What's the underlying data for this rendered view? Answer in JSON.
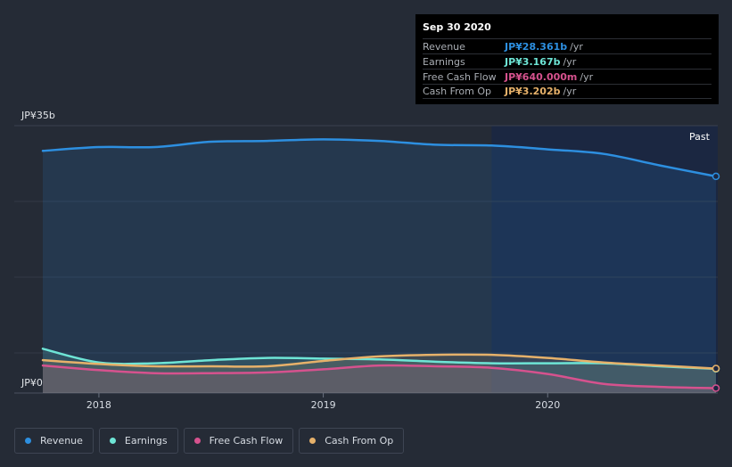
{
  "tooltip": {
    "date": "Sep 30 2020",
    "rows": [
      {
        "label": "Revenue",
        "value": "JP¥28.361b",
        "unit": "/yr",
        "color": "#2d8fe0"
      },
      {
        "label": "Earnings",
        "value": "JP¥3.167b",
        "unit": "/yr",
        "color": "#6ee5d6"
      },
      {
        "label": "Free Cash Flow",
        "value": "JP¥640.000m",
        "unit": "/yr",
        "color": "#d6528e"
      },
      {
        "label": "Cash From Op",
        "value": "JP¥3.202b",
        "unit": "/yr",
        "color": "#e6b16a"
      }
    ]
  },
  "past_label": "Past",
  "chart_data": {
    "type": "area",
    "y_top_label": "JP¥35b",
    "y_bottom_label": "JP¥0",
    "ylim": [
      0,
      35
    ],
    "xlim": [
      2017.75,
      2020.75
    ],
    "x_ticks": [
      {
        "value": 2018,
        "label": "2018"
      },
      {
        "value": 2019,
        "label": "2019"
      },
      {
        "value": 2020,
        "label": "2020"
      }
    ],
    "highlight_start": 2019.75,
    "series": [
      {
        "name": "Revenue",
        "color": "#2d8fe0",
        "fill": true,
        "x": [
          2017.75,
          2018.0,
          2018.25,
          2018.5,
          2018.75,
          2019.0,
          2019.25,
          2019.5,
          2019.75,
          2020.0,
          2020.25,
          2020.5,
          2020.75
        ],
        "values": [
          31.7,
          32.2,
          32.2,
          32.9,
          33.0,
          33.2,
          33.0,
          32.5,
          32.4,
          31.9,
          31.3,
          29.8,
          28.361
        ]
      },
      {
        "name": "Earnings",
        "color": "#6ee5d6",
        "fill": true,
        "x": [
          2017.75,
          2018.0,
          2018.25,
          2018.5,
          2018.75,
          2019.0,
          2019.25,
          2019.5,
          2019.75,
          2020.0,
          2020.25,
          2020.5,
          2020.75
        ],
        "values": [
          5.8,
          4.0,
          3.9,
          4.3,
          4.6,
          4.5,
          4.4,
          4.1,
          3.9,
          3.9,
          3.9,
          3.5,
          3.167
        ]
      },
      {
        "name": "Free Cash Flow",
        "color": "#d6528e",
        "fill": true,
        "x": [
          2017.75,
          2018.0,
          2018.25,
          2018.5,
          2018.75,
          2019.0,
          2019.25,
          2019.5,
          2019.75,
          2020.0,
          2020.25,
          2020.5,
          2020.75
        ],
        "values": [
          3.6,
          3.0,
          2.6,
          2.6,
          2.7,
          3.1,
          3.6,
          3.5,
          3.3,
          2.5,
          1.2,
          0.8,
          0.64
        ]
      },
      {
        "name": "Cash From Op",
        "color": "#e6b16a",
        "fill": true,
        "x": [
          2017.75,
          2018.0,
          2018.25,
          2018.5,
          2018.75,
          2019.0,
          2019.25,
          2019.5,
          2019.75,
          2020.0,
          2020.25,
          2020.5,
          2020.75
        ],
        "values": [
          4.3,
          3.8,
          3.5,
          3.5,
          3.5,
          4.2,
          4.8,
          5.0,
          5.0,
          4.6,
          4.0,
          3.6,
          3.202
        ]
      }
    ]
  },
  "legend": [
    {
      "label": "Revenue",
      "color": "#2d8fe0"
    },
    {
      "label": "Earnings",
      "color": "#6ee5d6"
    },
    {
      "label": "Free Cash Flow",
      "color": "#d6528e"
    },
    {
      "label": "Cash From Op",
      "color": "#e6b16a"
    }
  ]
}
